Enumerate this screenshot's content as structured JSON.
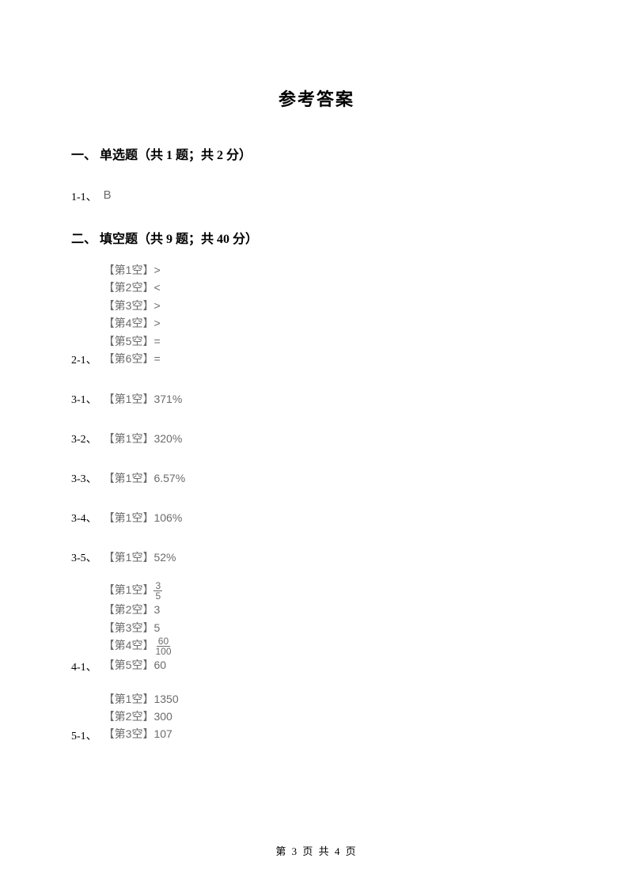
{
  "page": {
    "title": "参考答案",
    "footer": "第 3 页 共 4 页"
  },
  "sections": {
    "one": {
      "header": "一、 单选题（共 1 题；共 2 分）"
    },
    "two": {
      "header": "二、 填空题（共 9 题；共 40 分）"
    }
  },
  "answers": {
    "q1_1": {
      "label": "1-1、",
      "value": "B"
    },
    "q2_1": {
      "label": "2-1、",
      "blank1": "【第1空】>",
      "blank2": "【第2空】<",
      "blank3": "【第3空】>",
      "blank4": "【第4空】>",
      "blank5": "【第5空】=",
      "blank6": "【第6空】="
    },
    "q3_1": {
      "label": "3-1、",
      "value": "【第1空】371%"
    },
    "q3_2": {
      "label": "3-2、",
      "value": "【第1空】320%"
    },
    "q3_3": {
      "label": "3-3、",
      "value": "【第1空】6.57%"
    },
    "q3_4": {
      "label": "3-4、",
      "value": "【第1空】106%"
    },
    "q3_5": {
      "label": "3-5、",
      "value": "【第1空】52%"
    },
    "q4_1": {
      "label": "4-1、",
      "blank1_prefix": "【第1空】",
      "blank1_num": "3",
      "blank1_den": "5",
      "blank2": "【第2空】3",
      "blank3": "【第3空】5",
      "blank4_prefix": "【第4空】",
      "blank4_num": "60",
      "blank4_den": "100",
      "blank5": "【第5空】60"
    },
    "q5_1": {
      "label": "5-1、",
      "blank1": "【第1空】1350",
      "blank2": "【第2空】300",
      "blank3": "【第3空】107"
    }
  },
  "colors": {
    "text_primary": "#000000",
    "text_answer": "#6b6b6b",
    "background": "#ffffff"
  },
  "typography": {
    "title_fontsize": 22,
    "section_fontsize": 16,
    "body_fontsize": 14,
    "footer_fontsize": 13
  }
}
